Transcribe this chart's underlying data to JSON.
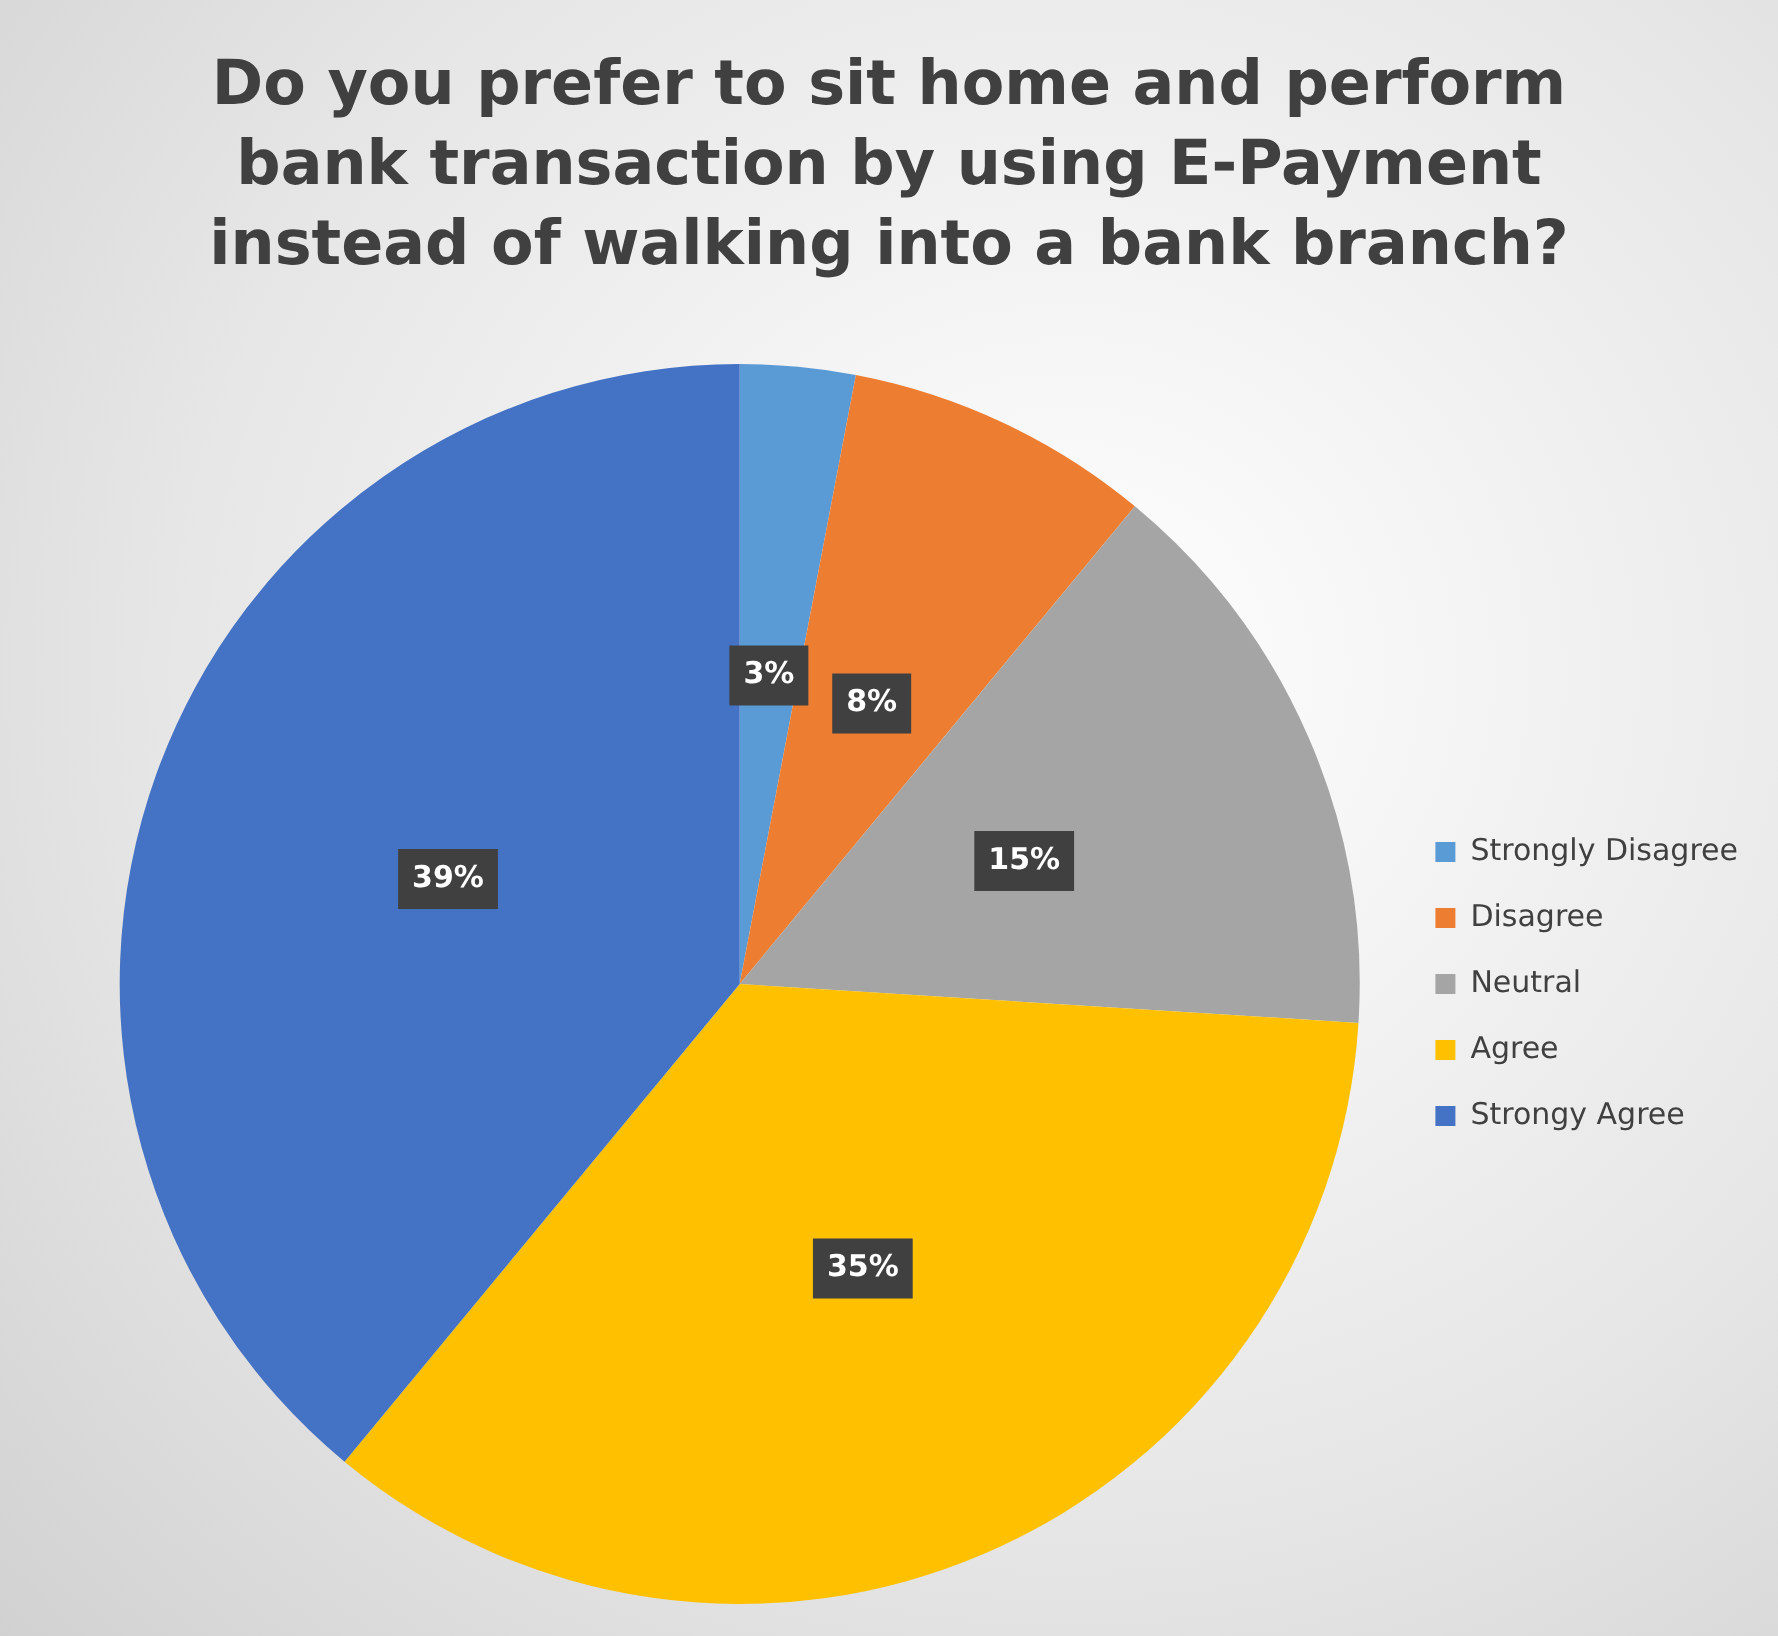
{
  "chart_data": {
    "type": "pie",
    "title": "Do you prefer to sit home and perform bank transaction by using E-Payment instead of walking into a bank branch?",
    "categories": [
      "Strongly Disagree",
      "Disagree",
      "Neutral",
      "Agree",
      "Strongy Agree"
    ],
    "values": [
      3,
      8,
      15,
      35,
      39
    ],
    "colors": [
      "#5b9bd5",
      "#ed7d31",
      "#a5a5a5",
      "#ffc000",
      "#4472c4"
    ],
    "value_labels": [
      "3%",
      "8%",
      "15%",
      "35%",
      "39%"
    ],
    "legend": "right"
  }
}
